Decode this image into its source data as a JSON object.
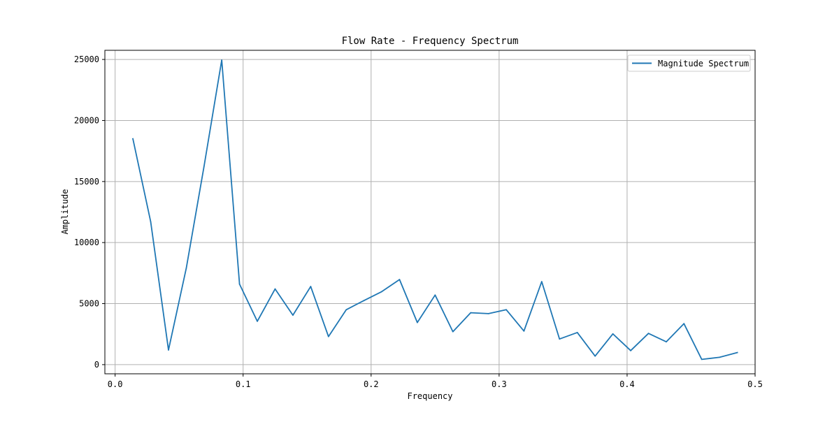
{
  "chart_data": {
    "type": "line",
    "title": "Flow Rate - Frequency Spectrum",
    "xlabel": "Frequency",
    "ylabel": "Amplitude",
    "xlim": [
      -0.008,
      0.5
    ],
    "ylim": [
      -750,
      25750
    ],
    "xticks": [
      0.0,
      0.1,
      0.2,
      0.3,
      0.4,
      0.5
    ],
    "xtick_labels": [
      "0.0",
      "0.1",
      "0.2",
      "0.3",
      "0.4",
      "0.5"
    ],
    "yticks": [
      0,
      5000,
      10000,
      15000,
      20000,
      25000
    ],
    "ytick_labels": [
      "0",
      "5000",
      "10000",
      "15000",
      "20000",
      "25000"
    ],
    "grid": true,
    "legend_position": "top-right",
    "colors": {
      "series": "#1f77b4",
      "grid": "#b0b0b0",
      "axes": "#000000"
    },
    "series": [
      {
        "name": "Magnitude Spectrum",
        "x": [
          0.0139,
          0.0278,
          0.0417,
          0.0556,
          0.0694,
          0.0833,
          0.0972,
          0.1111,
          0.125,
          0.1389,
          0.1528,
          0.1667,
          0.1806,
          0.1944,
          0.2083,
          0.2222,
          0.2361,
          0.25,
          0.2639,
          0.2778,
          0.2917,
          0.3056,
          0.3194,
          0.3333,
          0.3472,
          0.3611,
          0.375,
          0.3889,
          0.4028,
          0.4167,
          0.4306,
          0.4444,
          0.4583,
          0.4722,
          0.4861
        ],
        "y": [
          18500,
          11700,
          1200,
          7900,
          16200,
          24950,
          6600,
          3550,
          6200,
          4050,
          6400,
          2300,
          4500,
          5250,
          5980,
          6970,
          3450,
          5700,
          2700,
          4250,
          4180,
          4500,
          2750,
          6800,
          2100,
          2630,
          700,
          2520,
          1150,
          2560,
          1870,
          3360,
          430,
          600,
          990
        ]
      }
    ]
  }
}
